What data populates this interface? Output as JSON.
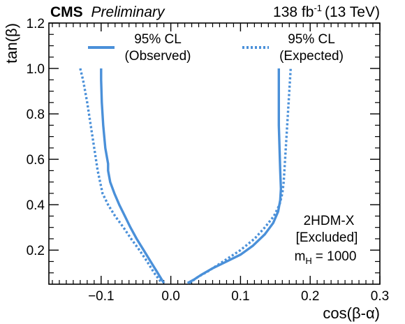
{
  "header": {
    "experiment": "CMS",
    "status": "Preliminary",
    "lumi_value": "138 fb",
    "lumi_exponent": "-1",
    "lumi_energy": "(13 TeV)"
  },
  "chart_data": {
    "type": "line",
    "xlabel": "cos(β-α)",
    "ylabel": "tan(β)",
    "xlim": [
      -0.175,
      0.3
    ],
    "ylim": [
      0.05,
      1.2
    ],
    "xticks": [
      "−0.1",
      "0.0",
      "0.1",
      "0.2",
      "0.3"
    ],
    "xtick_values": [
      -0.1,
      0.0,
      0.1,
      0.2,
      0.3
    ],
    "yticks": [
      "0.2",
      "0.4",
      "0.6",
      "0.8",
      "1.0",
      "1.2"
    ],
    "ytick_values": [
      0.2,
      0.4,
      0.6,
      0.8,
      1.0,
      1.2
    ],
    "grid": false,
    "legend_position": "top",
    "annotation": {
      "model": "2HDM-X",
      "note": "[Excluded]",
      "mass_prefix": "m",
      "mass_subscript": "H",
      "mass_value": "= 1000"
    },
    "series": [
      {
        "name_line1": "95% CL",
        "name_line2": "(Observed)",
        "style": "solid",
        "color": "#4a90d9",
        "branches": [
          [
            [
              -0.1,
              1.0
            ],
            [
              -0.1,
              0.95
            ],
            [
              -0.099,
              0.85
            ],
            [
              -0.097,
              0.75
            ],
            [
              -0.094,
              0.65
            ],
            [
              -0.09,
              0.58
            ],
            [
              -0.09,
              0.55
            ],
            [
              -0.087,
              0.5
            ],
            [
              -0.081,
              0.45
            ],
            [
              -0.074,
              0.4
            ],
            [
              -0.066,
              0.35
            ],
            [
              -0.058,
              0.3
            ],
            [
              -0.049,
              0.25
            ],
            [
              -0.039,
              0.2
            ],
            [
              -0.029,
              0.15
            ],
            [
              -0.019,
              0.1
            ],
            [
              -0.01,
              0.055
            ]
          ],
          [
            [
              0.024,
              0.055
            ],
            [
              0.033,
              0.07
            ],
            [
              0.043,
              0.09
            ],
            [
              0.06,
              0.12
            ],
            [
              0.08,
              0.15
            ],
            [
              0.1,
              0.18
            ],
            [
              0.118,
              0.22
            ],
            [
              0.135,
              0.27
            ],
            [
              0.147,
              0.32
            ],
            [
              0.154,
              0.37
            ],
            [
              0.157,
              0.42
            ],
            [
              0.158,
              0.47
            ],
            [
              0.157,
              0.55
            ],
            [
              0.156,
              0.65
            ],
            [
              0.155,
              0.75
            ],
            [
              0.155,
              0.85
            ],
            [
              0.155,
              0.95
            ],
            [
              0.155,
              1.0
            ]
          ]
        ]
      },
      {
        "name_line1": "95% CL",
        "name_line2": "(Expected)",
        "style": "dotted",
        "color": "#4a90d9",
        "branches": [
          [
            [
              -0.13,
              1.0
            ],
            [
              -0.126,
              0.95
            ],
            [
              -0.12,
              0.85
            ],
            [
              -0.115,
              0.75
            ],
            [
              -0.11,
              0.65
            ],
            [
              -0.105,
              0.55
            ],
            [
              -0.098,
              0.45
            ],
            [
              -0.09,
              0.4
            ],
            [
              -0.08,
              0.35
            ],
            [
              -0.068,
              0.3
            ],
            [
              -0.057,
              0.25
            ],
            [
              -0.045,
              0.2
            ],
            [
              -0.034,
              0.15
            ],
            [
              -0.024,
              0.1
            ],
            [
              -0.013,
              0.055
            ]
          ],
          [
            [
              0.027,
              0.055
            ],
            [
              0.038,
              0.08
            ],
            [
              0.055,
              0.11
            ],
            [
              0.075,
              0.15
            ],
            [
              0.1,
              0.2
            ],
            [
              0.12,
              0.25
            ],
            [
              0.135,
              0.3
            ],
            [
              0.148,
              0.35
            ],
            [
              0.156,
              0.4
            ],
            [
              0.16,
              0.45
            ],
            [
              0.162,
              0.5
            ],
            [
              0.164,
              0.6
            ],
            [
              0.166,
              0.7
            ],
            [
              0.168,
              0.8
            ],
            [
              0.17,
              0.9
            ],
            [
              0.172,
              1.0
            ]
          ]
        ]
      }
    ]
  }
}
